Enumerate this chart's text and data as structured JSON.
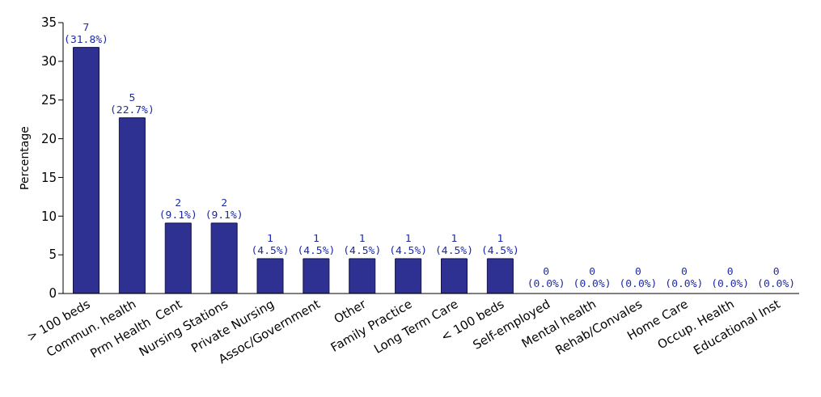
{
  "chart_data": {
    "type": "bar",
    "ylabel": "Percentage",
    "categories": [
      "> 100 beds",
      "Commun. health",
      "Prm Health  Cent",
      "Nursing Stations",
      "Private Nursing",
      "Assoc/Government",
      "Other",
      "Family Practice",
      "Long Term Care",
      "< 100 beds",
      "Self-employed",
      "Mental health",
      "Rehab/Convales",
      "Home Care",
      "Occup. Health",
      "Educational Inst"
    ],
    "values": [
      31.8,
      22.7,
      9.1,
      9.1,
      4.5,
      4.5,
      4.5,
      4.5,
      4.5,
      4.5,
      0,
      0,
      0,
      0,
      0,
      0
    ],
    "value_labels": [
      "7\n(31.8%)",
      "5\n(22.7%)",
      "2\n(9.1%)",
      "2\n(9.1%)",
      "1\n(4.5%)",
      "1\n(4.5%)",
      "1\n(4.5%)",
      "1\n(4.5%)",
      "1\n(4.5%)",
      "1\n(4.5%)",
      "0\n(0.0%)",
      "0\n(0.0%)",
      "0\n(0.0%)",
      "0\n(0.0%)",
      "0\n(0.0%)",
      "0\n(0.0%)"
    ],
    "color": "#2e3192",
    "ylim": [
      0,
      35
    ],
    "yticks": [
      0,
      5,
      10,
      15,
      20,
      25,
      30,
      35
    ],
    "grid": false,
    "legend": false
  }
}
